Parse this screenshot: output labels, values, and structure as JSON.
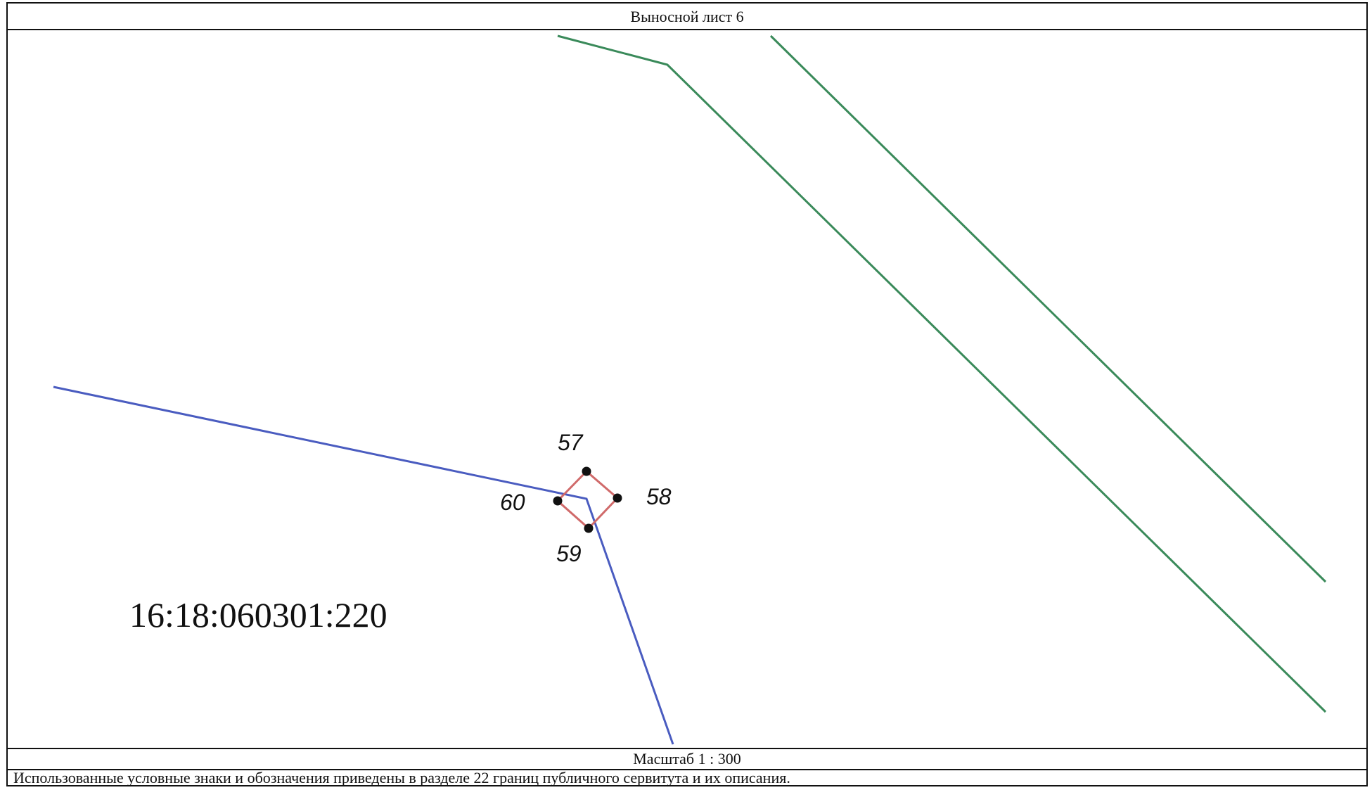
{
  "sheet": {
    "title": "Выносной лист 6",
    "scale": "Масштаб 1 : 300",
    "legend_note": "Использованные условные знаки и обозначения приведены в разделе 22 границ публичного сервитута и их описания."
  },
  "map": {
    "parcel_number": "16:18:060301:220",
    "points": [
      {
        "id": "57",
        "label": "57"
      },
      {
        "id": "58",
        "label": "58"
      },
      {
        "id": "59",
        "label": "59"
      },
      {
        "id": "60",
        "label": "60"
      }
    ],
    "colors": {
      "easement_boundary": "#d06a6a",
      "parcel_boundary": "#4a5cc0",
      "road_lines": "#3a8a5a",
      "point_marker": "#111111"
    }
  }
}
